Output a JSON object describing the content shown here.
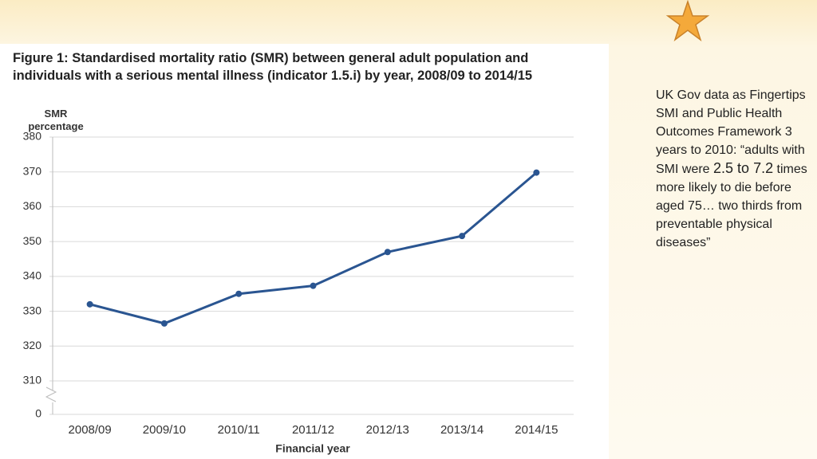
{
  "chart_data": {
    "type": "line",
    "title": "Figure 1: Standardised mortality ratio (SMR) between general adult population and individuals with a serious mental illness (indicator 1.5.i) by year, 2008/09  to 2014/15",
    "y_label": "SMR percentage",
    "x_label": "Financial year",
    "categories": [
      "2008/09",
      "2009/10",
      "2010/11",
      "2011/12",
      "2012/13",
      "2013/14",
      "2014/15"
    ],
    "series": [
      {
        "name": "SMR",
        "color": "#2a5591",
        "values": [
          332,
          326.5,
          335,
          337.3,
          347,
          351.6,
          369.8
        ]
      }
    ],
    "ylim": [
      300,
      380
    ],
    "yticks": [
      0,
      310,
      320,
      330,
      340,
      350,
      360,
      370,
      380
    ],
    "axis_break": true,
    "grid": true
  },
  "side_note": {
    "before": "UK Gov data as Fingertips SMI and Public Health Outcomes Framework 3 years to 2010: “adults with SMI were",
    "highlight": "2.5 to 7.2",
    "after": "times more likely to die before aged 75… two thirds from preventable physical diseases”"
  }
}
